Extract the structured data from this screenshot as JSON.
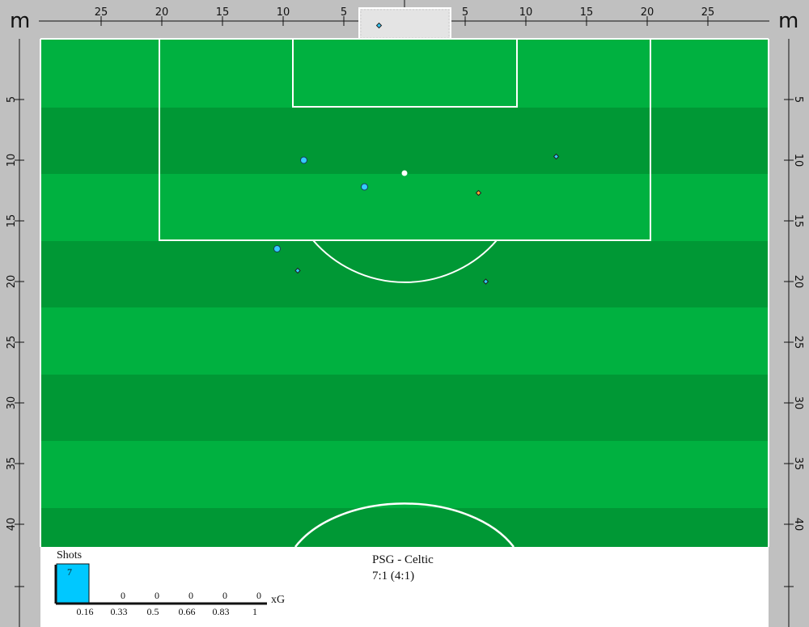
{
  "units": {
    "left": "m",
    "right": "m"
  },
  "top_ruler_labels": [
    "25",
    "20",
    "15",
    "10",
    "5",
    "5",
    "10",
    "15",
    "20",
    "25"
  ],
  "side_ruler_labels": [
    "5",
    "10",
    "15",
    "20",
    "25",
    "30",
    "35",
    "40"
  ],
  "match": {
    "teams": "PSG - Celtic",
    "score": "7:1 (4:1)"
  },
  "colors": {
    "pitch_light": "#00b140",
    "pitch_dark": "#009835",
    "lines": "#ffffff",
    "ruler_bg": "#c0c0c0",
    "shot_blue": "#33ccff",
    "shot_orange": "#ffa833",
    "bar_fill": "#00c8ff"
  },
  "shots": [
    {
      "x": -8.3,
      "y": 10.0,
      "marker": "circle",
      "color": "#33ccff"
    },
    {
      "x": -3.3,
      "y": 12.2,
      "marker": "circle",
      "color": "#33ccff"
    },
    {
      "x": -10.5,
      "y": 17.3,
      "marker": "circle",
      "color": "#33ccff"
    },
    {
      "x": 6.1,
      "y": 12.7,
      "marker": "diamond",
      "color": "#ffa833"
    },
    {
      "x": 12.5,
      "y": 9.7,
      "marker": "diamond",
      "color": "#33ccff"
    },
    {
      "x": -8.8,
      "y": 19.1,
      "marker": "diamond",
      "color": "#33ccff"
    },
    {
      "x": 6.7,
      "y": 20.0,
      "marker": "diamond",
      "color": "#33ccff"
    },
    {
      "x": -2.1,
      "y": -1.1,
      "marker": "diamond",
      "color": "#33ccff"
    }
  ],
  "chart_data": {
    "type": "bar",
    "title": "Shots",
    "xlabel": "xG",
    "categories": [
      "0.16",
      "0.33",
      "0.5",
      "0.66",
      "0.83",
      "1"
    ],
    "values": [
      7,
      0,
      0,
      0,
      0,
      0
    ],
    "value_labels": [
      "7",
      "0",
      "0",
      "0",
      "0",
      "0"
    ]
  }
}
